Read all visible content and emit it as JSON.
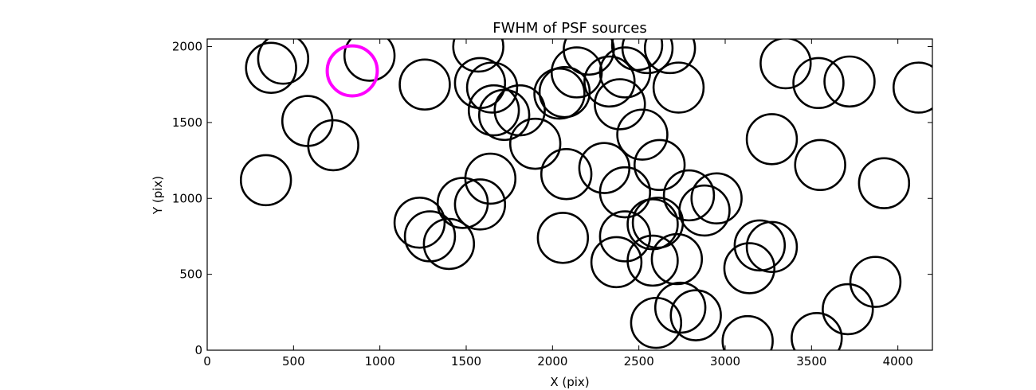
{
  "chart_data": {
    "type": "scatter",
    "title": "FWHM of PSF sources",
    "xlabel": "X (pix)",
    "ylabel": "Y (pix)",
    "xlim": [
      0,
      4200
    ],
    "ylim": [
      0,
      2050
    ],
    "xticks": [
      0,
      500,
      1000,
      1500,
      2000,
      2500,
      3000,
      3500,
      4000
    ],
    "yticks": [
      0,
      500,
      1000,
      1500,
      2000
    ],
    "grid": false,
    "marker": "open-circle",
    "circle_radius": 145,
    "default_color": "#000000",
    "highlight_color": "#ff00ff",
    "points": [
      {
        "x": 370,
        "y": 1860
      },
      {
        "x": 440,
        "y": 1920
      },
      {
        "x": 940,
        "y": 1940
      },
      {
        "x": 840,
        "y": 1840,
        "highlight": true
      },
      {
        "x": 580,
        "y": 1510
      },
      {
        "x": 730,
        "y": 1350
      },
      {
        "x": 340,
        "y": 1120
      },
      {
        "x": 1260,
        "y": 1750
      },
      {
        "x": 1570,
        "y": 2000
      },
      {
        "x": 1580,
        "y": 1760
      },
      {
        "x": 1650,
        "y": 1730
      },
      {
        "x": 1660,
        "y": 1580
      },
      {
        "x": 1720,
        "y": 1550
      },
      {
        "x": 1810,
        "y": 1580
      },
      {
        "x": 1900,
        "y": 1360
      },
      {
        "x": 2040,
        "y": 1690
      },
      {
        "x": 2070,
        "y": 1700
      },
      {
        "x": 2140,
        "y": 1830
      },
      {
        "x": 2210,
        "y": 1980
      },
      {
        "x": 2330,
        "y": 1770
      },
      {
        "x": 2420,
        "y": 1830
      },
      {
        "x": 2490,
        "y": 2010
      },
      {
        "x": 2550,
        "y": 1990
      },
      {
        "x": 2680,
        "y": 1990
      },
      {
        "x": 2730,
        "y": 1730
      },
      {
        "x": 2390,
        "y": 1620
      },
      {
        "x": 2520,
        "y": 1420
      },
      {
        "x": 2620,
        "y": 1220
      },
      {
        "x": 2080,
        "y": 1160
      },
      {
        "x": 2300,
        "y": 1200
      },
      {
        "x": 2420,
        "y": 1040
      },
      {
        "x": 1640,
        "y": 1130
      },
      {
        "x": 1480,
        "y": 970
      },
      {
        "x": 1580,
        "y": 960
      },
      {
        "x": 1230,
        "y": 840
      },
      {
        "x": 1290,
        "y": 750
      },
      {
        "x": 1400,
        "y": 700
      },
      {
        "x": 2060,
        "y": 740
      },
      {
        "x": 2370,
        "y": 580
      },
      {
        "x": 2420,
        "y": 750
      },
      {
        "x": 2580,
        "y": 830
      },
      {
        "x": 2610,
        "y": 840
      },
      {
        "x": 2580,
        "y": 590
      },
      {
        "x": 2720,
        "y": 600
      },
      {
        "x": 2790,
        "y": 1020
      },
      {
        "x": 2880,
        "y": 920
      },
      {
        "x": 2950,
        "y": 1000
      },
      {
        "x": 2600,
        "y": 180
      },
      {
        "x": 2740,
        "y": 280
      },
      {
        "x": 2830,
        "y": 230
      },
      {
        "x": 3140,
        "y": 540
      },
      {
        "x": 3200,
        "y": 690
      },
      {
        "x": 3270,
        "y": 680
      },
      {
        "x": 3270,
        "y": 1390
      },
      {
        "x": 3350,
        "y": 1890
      },
      {
        "x": 3540,
        "y": 1760
      },
      {
        "x": 3720,
        "y": 1770
      },
      {
        "x": 4120,
        "y": 1730
      },
      {
        "x": 3550,
        "y": 1220
      },
      {
        "x": 3920,
        "y": 1100
      },
      {
        "x": 3870,
        "y": 450
      },
      {
        "x": 3710,
        "y": 270
      },
      {
        "x": 3530,
        "y": 80
      },
      {
        "x": 3130,
        "y": 60
      }
    ]
  }
}
